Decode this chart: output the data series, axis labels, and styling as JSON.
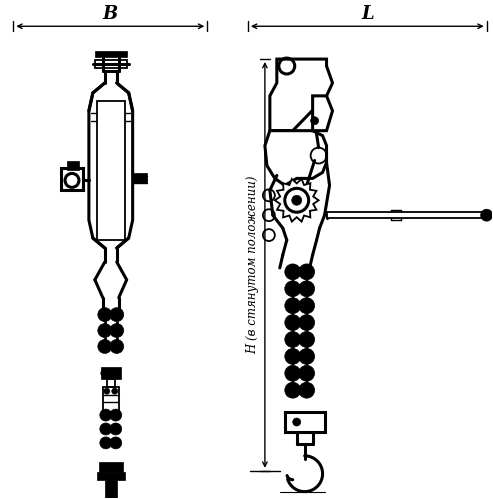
{
  "bg_color": "#ffffff",
  "line_color": "#000000",
  "lw": 1.3,
  "blw": 2.2,
  "figsize": [
    4.93,
    4.99
  ],
  "dpi": 100,
  "B_label": "B",
  "L_label": "L",
  "H_label": "H (в стянутом положении)"
}
